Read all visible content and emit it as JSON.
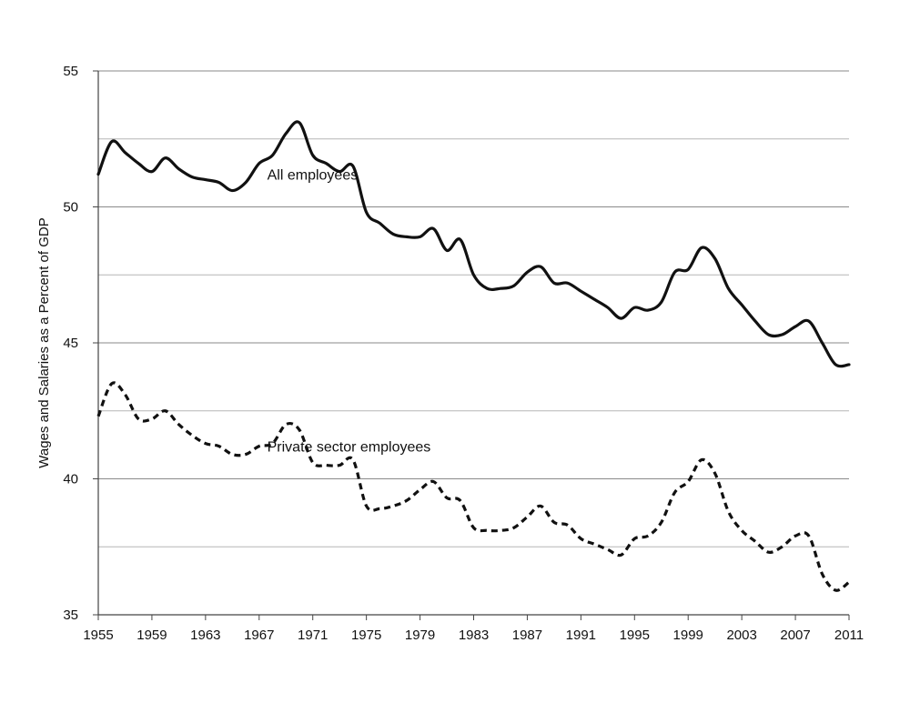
{
  "chart_data": {
    "type": "line",
    "title": "",
    "xlabel": "",
    "ylabel": "Wages and Salaries as a Percent of GDP",
    "xlim": [
      1955,
      2011
    ],
    "ylim": [
      35,
      55
    ],
    "x_ticks": [
      "1955",
      "1959",
      "1963",
      "1967",
      "1971",
      "1975",
      "1979",
      "1983",
      "1987",
      "1991",
      "1995",
      "1999",
      "2003",
      "2007",
      "2011"
    ],
    "y_ticks": [
      "35",
      "40",
      "45",
      "50",
      "55"
    ],
    "grid": {
      "horizontal": true,
      "vertical": false,
      "major_step": 5,
      "minor_step": 2.5
    },
    "series": [
      {
        "name": "All employees",
        "style": "solid",
        "color": "#111111",
        "x": [
          1955,
          1956,
          1957,
          1958,
          1959,
          1960,
          1961,
          1962,
          1963,
          1964,
          1965,
          1966,
          1967,
          1968,
          1969,
          1970,
          1971,
          1972,
          1973,
          1974,
          1975,
          1976,
          1977,
          1978,
          1979,
          1980,
          1981,
          1982,
          1983,
          1984,
          1985,
          1986,
          1987,
          1988,
          1989,
          1990,
          1991,
          1992,
          1993,
          1994,
          1995,
          1996,
          1997,
          1998,
          1999,
          2000,
          2001,
          2002,
          2003,
          2004,
          2005,
          2006,
          2007,
          2008,
          2009,
          2010,
          2011
        ],
        "values": [
          51.2,
          52.4,
          52.0,
          51.6,
          51.3,
          51.8,
          51.4,
          51.1,
          51.0,
          50.9,
          50.6,
          50.9,
          51.6,
          51.9,
          52.7,
          53.1,
          51.9,
          51.6,
          51.3,
          51.5,
          49.8,
          49.4,
          49.0,
          48.9,
          48.9,
          49.2,
          48.4,
          48.8,
          47.5,
          47.0,
          47.0,
          47.1,
          47.6,
          47.8,
          47.2,
          47.2,
          46.9,
          46.6,
          46.3,
          45.9,
          46.3,
          46.2,
          46.5,
          47.6,
          47.7,
          48.5,
          48.1,
          47.0,
          46.4,
          45.8,
          45.3,
          45.3,
          45.6,
          45.8,
          45.0,
          44.2,
          44.2
        ]
      },
      {
        "name": "Private sector employees",
        "style": "dashed",
        "color": "#111111",
        "x": [
          1955,
          1956,
          1957,
          1958,
          1959,
          1960,
          1961,
          1962,
          1963,
          1964,
          1965,
          1966,
          1967,
          1968,
          1969,
          1970,
          1971,
          1972,
          1973,
          1974,
          1975,
          1976,
          1977,
          1978,
          1979,
          1980,
          1981,
          1982,
          1983,
          1984,
          1985,
          1986,
          1987,
          1988,
          1989,
          1990,
          1991,
          1992,
          1993,
          1994,
          1995,
          1996,
          1997,
          1998,
          1999,
          2000,
          2001,
          2002,
          2003,
          2004,
          2005,
          2006,
          2007,
          2008,
          2009,
          2010,
          2011
        ],
        "values": [
          42.3,
          43.5,
          43.1,
          42.2,
          42.2,
          42.5,
          42.0,
          41.6,
          41.3,
          41.2,
          40.9,
          40.9,
          41.2,
          41.3,
          42.0,
          41.8,
          40.6,
          40.5,
          40.5,
          40.7,
          39.0,
          38.9,
          39.0,
          39.2,
          39.6,
          39.9,
          39.3,
          39.2,
          38.2,
          38.1,
          38.1,
          38.2,
          38.6,
          39.0,
          38.4,
          38.3,
          37.8,
          37.6,
          37.4,
          37.2,
          37.8,
          37.9,
          38.4,
          39.5,
          39.9,
          40.7,
          40.2,
          38.8,
          38.1,
          37.7,
          37.3,
          37.5,
          37.9,
          37.9,
          36.5,
          35.9,
          36.2
        ]
      }
    ],
    "annotations": [
      {
        "text": "All employees",
        "x": 1967.6,
        "y": 51.0
      },
      {
        "text": "Private sector employees",
        "x": 1967.6,
        "y": 41.0
      }
    ]
  }
}
